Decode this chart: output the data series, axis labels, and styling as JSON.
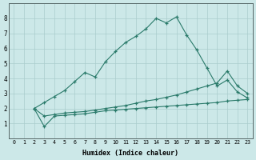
{
  "xlabel": "Humidex (Indice chaleur)",
  "background_color": "#cce8e8",
  "grid_color": "#aacccc",
  "line_color": "#2a7a6a",
  "xlim": [
    -0.5,
    23.5
  ],
  "ylim": [
    0,
    9
  ],
  "series": [
    {
      "x": [
        2,
        3,
        4,
        5,
        6,
        7,
        8,
        9,
        10,
        11,
        12,
        13,
        14,
        15,
        16,
        17,
        18,
        19,
        20,
        21,
        22,
        23
      ],
      "y": [
        2.0,
        2.4,
        2.8,
        3.2,
        3.8,
        4.4,
        4.1,
        5.1,
        5.8,
        6.4,
        6.8,
        7.3,
        8.0,
        7.7,
        8.1,
        6.9,
        5.9,
        4.7,
        3.5,
        3.9,
        3.1,
        2.7
      ]
    },
    {
      "x": [
        2,
        3,
        4,
        5,
        6,
        7,
        8,
        9,
        10,
        11,
        12,
        13,
        14,
        15,
        16,
        17,
        18,
        19,
        20,
        21,
        22,
        23
      ],
      "y": [
        2.0,
        1.5,
        1.6,
        1.7,
        1.75,
        1.8,
        1.9,
        2.0,
        2.1,
        2.2,
        2.35,
        2.5,
        2.6,
        2.75,
        2.9,
        3.1,
        3.3,
        3.5,
        3.7,
        4.5,
        3.5,
        3.0
      ]
    },
    {
      "x": [
        2,
        3,
        4,
        5,
        6,
        7,
        8,
        9,
        10,
        11,
        12,
        13,
        14,
        15,
        16,
        17,
        18,
        19,
        20,
        21,
        22,
        23
      ],
      "y": [
        2.0,
        0.8,
        1.5,
        1.55,
        1.6,
        1.65,
        1.75,
        1.85,
        1.9,
        1.95,
        2.0,
        2.05,
        2.1,
        2.15,
        2.2,
        2.25,
        2.3,
        2.35,
        2.4,
        2.5,
        2.55,
        2.6
      ]
    }
  ],
  "yticks": [
    1,
    2,
    3,
    4,
    5,
    6,
    7,
    8
  ],
  "xticks": [
    0,
    1,
    2,
    3,
    4,
    5,
    6,
    7,
    8,
    9,
    10,
    11,
    12,
    13,
    14,
    15,
    16,
    17,
    18,
    19,
    20,
    21,
    22,
    23
  ]
}
